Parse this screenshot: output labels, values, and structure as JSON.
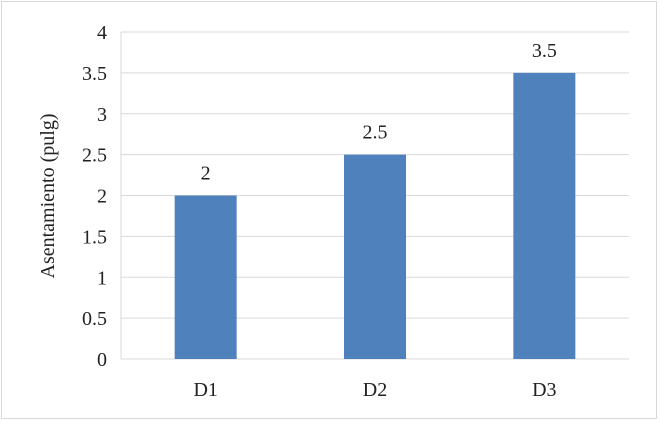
{
  "chart_data": {
    "type": "bar",
    "categories": [
      "D1",
      "D2",
      "D3"
    ],
    "values": [
      2,
      2.5,
      3.5
    ],
    "data_labels": [
      "2",
      "2.5",
      "3.5"
    ],
    "ylabel": "Asentamiento (pulg)",
    "xlabel": "",
    "ylim": [
      0,
      4
    ],
    "yticks": [
      "0",
      "0.5",
      "1",
      "1.5",
      "2",
      "2.5",
      "3",
      "3.5",
      "4"
    ],
    "grid": true,
    "bar_color": "#4f81bd"
  }
}
